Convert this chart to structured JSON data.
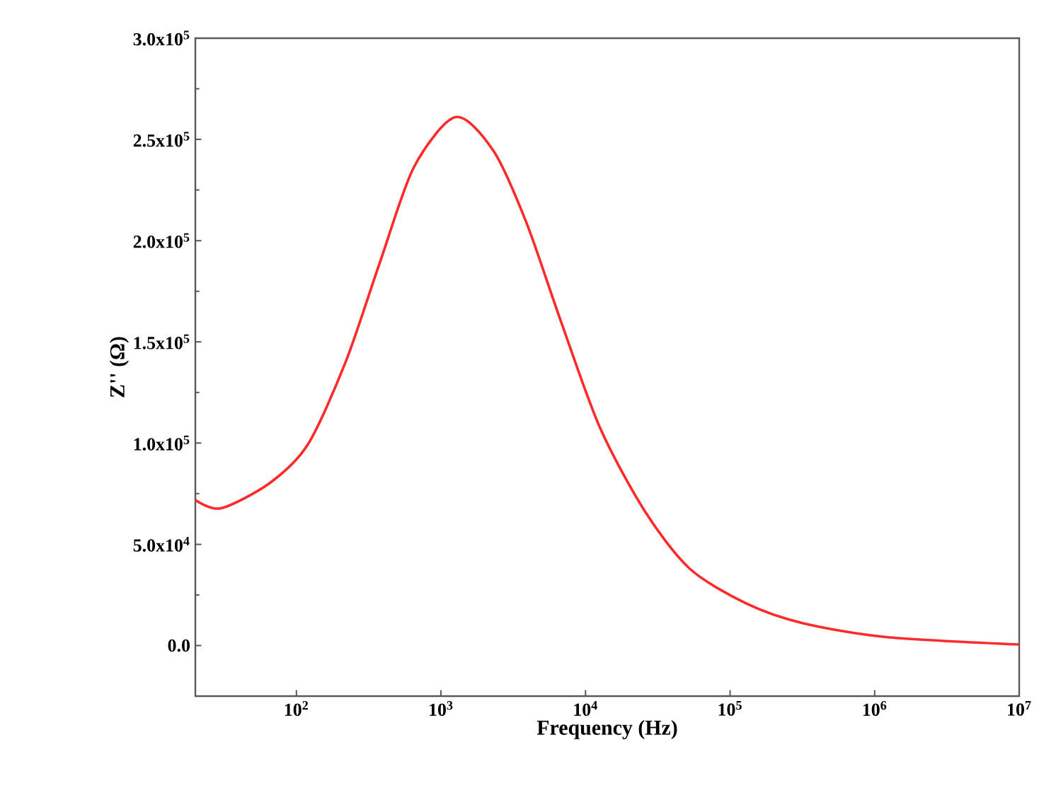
{
  "chart_data": {
    "type": "line",
    "xlabel": "Frequency (Hz)",
    "ylabel": "Z'' (Ω)",
    "log": "x",
    "xlim": [
      20,
      10000000
    ],
    "ylim": [
      -25000,
      300000
    ],
    "xticks": [
      {
        "value": 100,
        "label": "10$^{2}$"
      },
      {
        "value": 1000,
        "label": "10$^{3}$"
      },
      {
        "value": 10000,
        "label": "10$^{4}$"
      },
      {
        "value": 100000,
        "label": "10$^{5}$"
      },
      {
        "value": 1000000,
        "label": "10$^{6}$"
      },
      {
        "value": 10000000,
        "label": "10$^{7}$"
      }
    ],
    "yticks": [
      {
        "value": 0,
        "label": "0.0"
      },
      {
        "value": 50000,
        "label": "5.0x10$^{4}$"
      },
      {
        "value": 100000,
        "label": "1.0x10$^{5}$"
      },
      {
        "value": 150000,
        "label": "1.5x10$^{5}$"
      },
      {
        "value": 200000,
        "label": "2.0x10$^{5}$"
      },
      {
        "value": 250000,
        "label": "2.5x10$^{5}$"
      },
      {
        "value": 300000,
        "label": "3.0x10$^{5}$"
      }
    ],
    "x": [
      20,
      30,
      65,
      120,
      220,
      380,
      650,
      1260,
      2300,
      3900,
      6800,
      12600,
      25700,
      52500,
      129000,
      316000,
      1200000,
      10000000
    ],
    "series": [
      {
        "color": "#ff2a2a",
        "values": [
          71900,
          67800,
          80100,
          99300,
          140400,
          189700,
          236300,
          261000,
          244500,
          208900,
          159600,
          107500,
          66400,
          38000,
          20800,
          11100,
          4200,
          500
        ]
      }
    ]
  }
}
